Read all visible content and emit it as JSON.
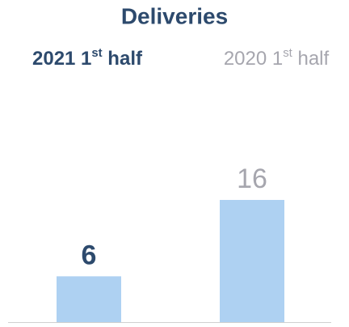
{
  "chart_data": {
    "type": "bar",
    "title": "Deliveries",
    "categories": [
      "2021 1st half",
      "2020 1st half"
    ],
    "values": [
      6,
      16
    ],
    "color": "#aed1f2",
    "text_colors": [
      "#2d4a6d",
      "#a6a6ae"
    ]
  }
}
